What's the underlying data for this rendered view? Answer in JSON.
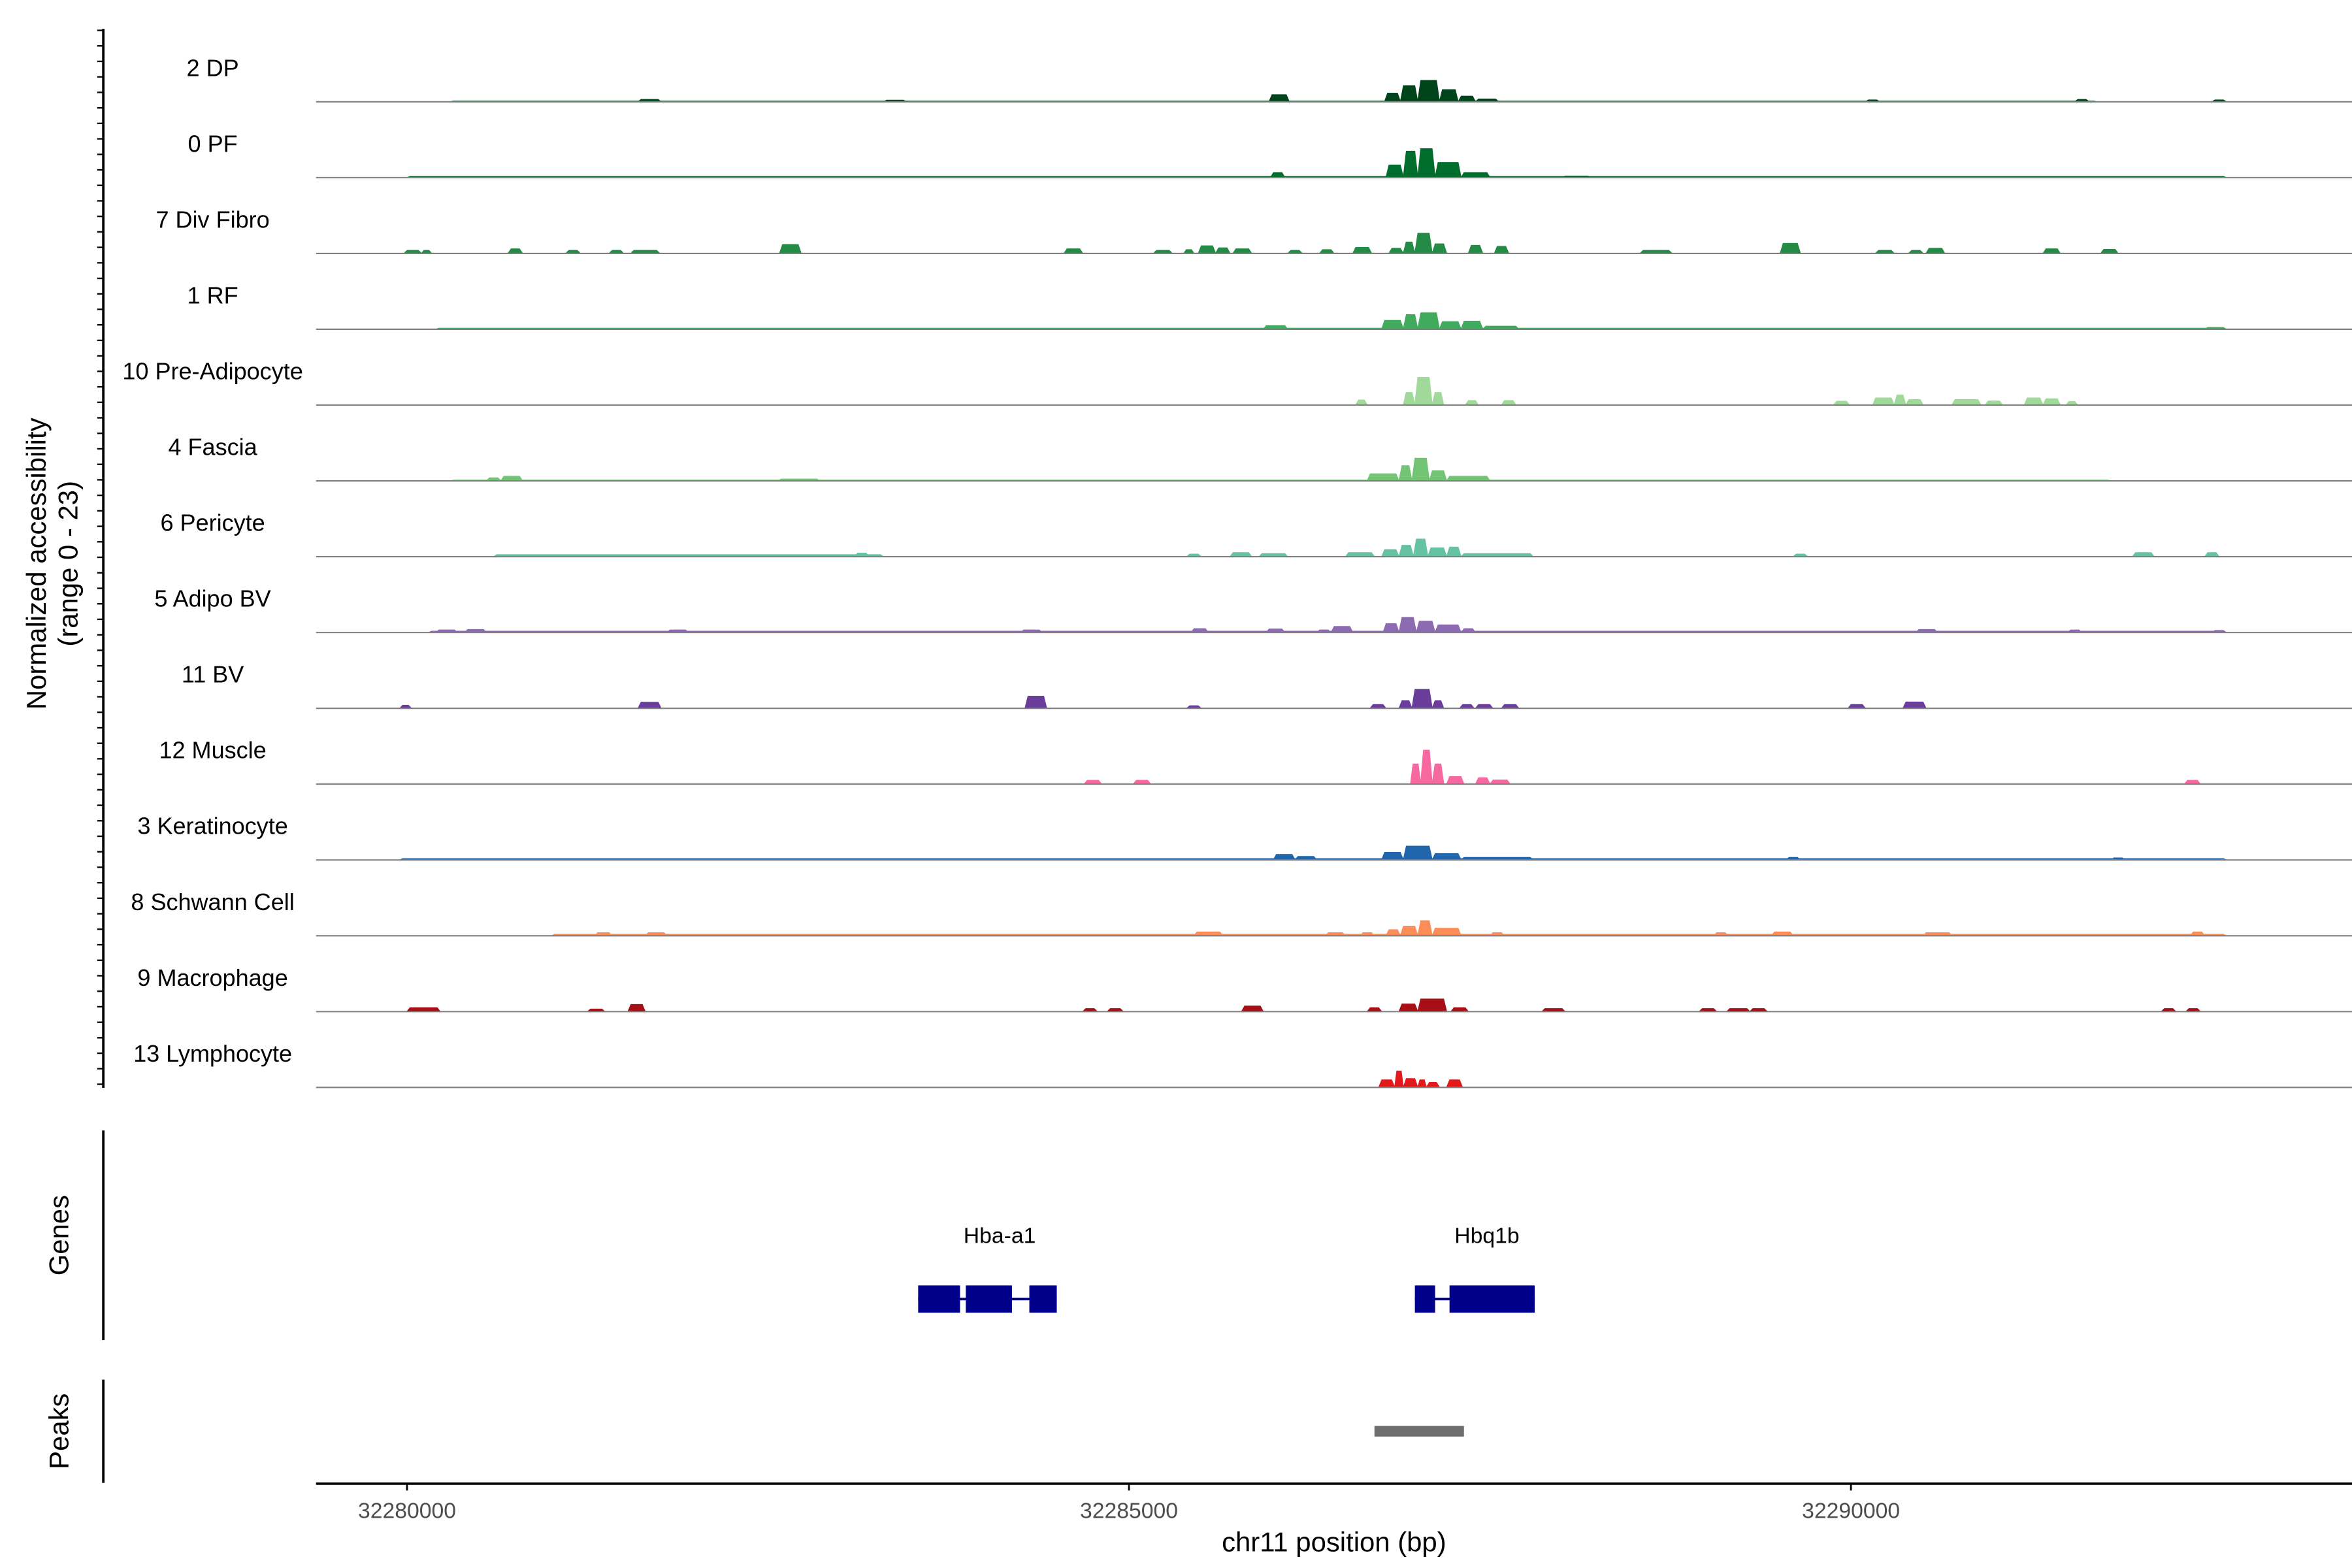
{
  "chart_data": {
    "type": "area",
    "subtype": "genome-browser-coverage",
    "ylabel_line1": "Normalized accessibility",
    "ylabel_line2": "(range 0 - 23)",
    "ylim": [
      0,
      23
    ],
    "xlabel": "chr11 position (bp)",
    "xlim": [
      32279370,
      32293470
    ],
    "x_ticks": [
      32280000,
      32285000,
      32290000
    ],
    "x_tick_labels": [
      "32280000",
      "32285000",
      "32290000"
    ],
    "genes_label": "Genes",
    "peaks_label": "Peaks",
    "tracks": [
      {
        "name": "2 DP",
        "color": "#00441b",
        "peaks": [
          [
            32280300,
            32291700,
            0.3
          ],
          [
            32285000,
            32291700,
            0.3
          ],
          [
            32285970,
            32286110,
            2.8
          ],
          [
            32286770,
            32286880,
            3.4
          ],
          [
            32286880,
            32287000,
            6.4
          ],
          [
            32287000,
            32287150,
            8.5
          ],
          [
            32287150,
            32287280,
            4.8
          ],
          [
            32287280,
            32287400,
            2.2
          ],
          [
            32287400,
            32287560,
            1.1
          ],
          [
            32281600,
            32281760,
            0.9
          ],
          [
            32283300,
            32283460,
            0.6
          ],
          [
            32290100,
            32290200,
            0.7
          ],
          [
            32291550,
            32291650,
            0.9
          ],
          [
            32292500,
            32292600,
            0.7
          ]
        ]
      },
      {
        "name": "0 PF",
        "color": "#006d2c",
        "peaks": [
          [
            32280000,
            32292600,
            0.45
          ],
          [
            32285980,
            32286080,
            2.0
          ],
          [
            32286780,
            32286900,
            5.0
          ],
          [
            32286900,
            32287000,
            10.5
          ],
          [
            32287000,
            32287120,
            11.5
          ],
          [
            32287120,
            32287300,
            6.0
          ],
          [
            32287300,
            32287500,
            2.0
          ],
          [
            32288000,
            32288200,
            0.6
          ]
        ]
      },
      {
        "name": "7 Div Fibro",
        "color": "#238b45",
        "peaks": [
          [
            32279980,
            32280100,
            1.2
          ],
          [
            32280100,
            32280170,
            1.2
          ],
          [
            32280700,
            32280800,
            1.8
          ],
          [
            32281100,
            32281200,
            1.2
          ],
          [
            32281400,
            32281500,
            1.2
          ],
          [
            32281550,
            32281750,
            1.2
          ],
          [
            32282580,
            32282730,
            3.5
          ],
          [
            32284550,
            32284680,
            1.8
          ],
          [
            32285170,
            32285300,
            1.2
          ],
          [
            32285380,
            32285450,
            1.5
          ],
          [
            32285480,
            32285600,
            3.0
          ],
          [
            32285600,
            32285700,
            2.2
          ],
          [
            32285720,
            32285850,
            1.8
          ],
          [
            32286100,
            32286200,
            1.2
          ],
          [
            32286320,
            32286420,
            1.5
          ],
          [
            32286550,
            32286680,
            2.4
          ],
          [
            32286800,
            32286900,
            2.0
          ],
          [
            32286900,
            32286980,
            4.5
          ],
          [
            32286980,
            32287100,
            8.0
          ],
          [
            32287100,
            32287200,
            3.8
          ],
          [
            32287350,
            32287450,
            3.2
          ],
          [
            32287530,
            32287630,
            2.8
          ],
          [
            32288540,
            32288760,
            1.2
          ],
          [
            32289510,
            32289650,
            4.0
          ],
          [
            32290170,
            32290300,
            1.2
          ],
          [
            32290400,
            32290500,
            1.2
          ],
          [
            32290520,
            32290650,
            2.0
          ],
          [
            32291330,
            32291450,
            1.8
          ],
          [
            32291730,
            32291850,
            1.6
          ]
        ]
      },
      {
        "name": "1 RF",
        "color": "#41ab5d",
        "peaks": [
          [
            32280200,
            32292600,
            0.4
          ],
          [
            32285930,
            32286100,
            1.4
          ],
          [
            32286750,
            32286900,
            3.5
          ],
          [
            32286900,
            32287000,
            5.8
          ],
          [
            32287000,
            32287150,
            6.5
          ],
          [
            32287150,
            32287300,
            3.0
          ],
          [
            32287300,
            32287450,
            3.2
          ],
          [
            32287450,
            32287700,
            1.2
          ],
          [
            32292450,
            32292600,
            0.7
          ]
        ]
      },
      {
        "name": "10 Pre-Adipocyte",
        "color": "#a1d99b",
        "peaks": [
          [
            32286570,
            32286650,
            2.0
          ],
          [
            32286900,
            32286980,
            5.0
          ],
          [
            32286980,
            32287100,
            11.0
          ],
          [
            32287100,
            32287180,
            5.0
          ],
          [
            32287330,
            32287420,
            1.8
          ],
          [
            32287580,
            32287680,
            1.8
          ],
          [
            32289880,
            32289990,
            1.5
          ],
          [
            32290150,
            32290300,
            2.8
          ],
          [
            32290300,
            32290380,
            4.0
          ],
          [
            32290380,
            32290500,
            2.2
          ],
          [
            32290700,
            32290900,
            2.2
          ],
          [
            32290930,
            32291050,
            1.6
          ],
          [
            32291200,
            32291330,
            2.8
          ],
          [
            32291330,
            32291450,
            2.5
          ],
          [
            32291490,
            32291570,
            1.4
          ]
        ]
      },
      {
        "name": "4 Fascia",
        "color": "#74c476",
        "peaks": [
          [
            32280300,
            32291800,
            0.3
          ],
          [
            32280550,
            32280650,
            1.2
          ],
          [
            32280650,
            32280800,
            1.8
          ],
          [
            32282570,
            32282860,
            0.7
          ],
          [
            32286650,
            32286870,
            2.8
          ],
          [
            32286870,
            32286960,
            6.0
          ],
          [
            32286960,
            32287080,
            9.0
          ],
          [
            32287080,
            32287200,
            4.0
          ],
          [
            32287200,
            32287500,
            1.8
          ]
        ]
      },
      {
        "name": "6 Pericyte",
        "color": "#66c2a4",
        "peaks": [
          [
            32280600,
            32283300,
            0.8
          ],
          [
            32283100,
            32283200,
            1.4
          ],
          [
            32285400,
            32285500,
            1.0
          ],
          [
            32285700,
            32285850,
            1.6
          ],
          [
            32285900,
            32286100,
            1.2
          ],
          [
            32286500,
            32286700,
            1.6
          ],
          [
            32286750,
            32286870,
            2.8
          ],
          [
            32286870,
            32286970,
            4.5
          ],
          [
            32286970,
            32287070,
            7.0
          ],
          [
            32287070,
            32287200,
            3.5
          ],
          [
            32287200,
            32287300,
            3.8
          ],
          [
            32287300,
            32287800,
            1.2
          ],
          [
            32289600,
            32289700,
            1.0
          ],
          [
            32291950,
            32292100,
            1.6
          ],
          [
            32292450,
            32292550,
            1.6
          ]
        ]
      },
      {
        "name": "5 Adipo BV",
        "color": "#8c6bb1",
        "peaks": [
          [
            32280150,
            32292600,
            0.5
          ],
          [
            32280200,
            32280350,
            1.0
          ],
          [
            32280400,
            32280550,
            1.2
          ],
          [
            32281800,
            32281950,
            1.0
          ],
          [
            32284250,
            32284400,
            1.0
          ],
          [
            32285430,
            32285550,
            1.5
          ],
          [
            32285950,
            32286080,
            1.4
          ],
          [
            32286300,
            32286400,
            1.0
          ],
          [
            32286400,
            32286550,
            2.4
          ],
          [
            32286760,
            32286870,
            3.5
          ],
          [
            32286870,
            32286990,
            6.0
          ],
          [
            32286990,
            32287120,
            4.5
          ],
          [
            32287120,
            32287300,
            3.0
          ],
          [
            32287300,
            32287400,
            1.5
          ],
          [
            32290450,
            32290600,
            1.2
          ],
          [
            32291500,
            32291600,
            1.0
          ],
          [
            32292500,
            32292600,
            0.8
          ]
        ]
      },
      {
        "name": "11 BV",
        "color": "#6a3d9a",
        "peaks": [
          [
            32279950,
            32280030,
            1.2
          ],
          [
            32281600,
            32281760,
            2.4
          ],
          [
            32284280,
            32284430,
            4.8
          ],
          [
            32285400,
            32285500,
            1.0
          ],
          [
            32286670,
            32286780,
            1.5
          ],
          [
            32286870,
            32286960,
            3.0
          ],
          [
            32286960,
            32287100,
            7.5
          ],
          [
            32287100,
            32287180,
            3.0
          ],
          [
            32287290,
            32287390,
            1.5
          ],
          [
            32287400,
            32287520,
            1.5
          ],
          [
            32287580,
            32287700,
            1.5
          ],
          [
            32289980,
            32290100,
            1.5
          ],
          [
            32290360,
            32290520,
            2.5
          ]
        ]
      },
      {
        "name": "12 Muscle",
        "color": "#f768a1",
        "peaks": [
          [
            32284690,
            32284810,
            1.5
          ],
          [
            32285030,
            32285150,
            1.5
          ],
          [
            32286950,
            32287020,
            8.0
          ],
          [
            32287020,
            32287100,
            13.5
          ],
          [
            32287100,
            32287180,
            8.0
          ],
          [
            32287200,
            32287320,
            3.0
          ],
          [
            32287400,
            32287500,
            2.5
          ],
          [
            32287500,
            32287640,
            1.6
          ],
          [
            32292310,
            32292420,
            1.5
          ]
        ]
      },
      {
        "name": "3 Keratinocyte",
        "color": "#2166ac",
        "peaks": [
          [
            32279950,
            32292600,
            0.5
          ],
          [
            32286000,
            32286150,
            2.2
          ],
          [
            32286150,
            32286300,
            1.4
          ],
          [
            32286750,
            32286900,
            3.0
          ],
          [
            32286900,
            32287100,
            5.5
          ],
          [
            32287100,
            32287300,
            2.5
          ],
          [
            32287300,
            32287800,
            1.0
          ],
          [
            32289550,
            32289650,
            1.0
          ],
          [
            32291800,
            32291900,
            0.8
          ]
        ]
      },
      {
        "name": "8 Schwann Cell",
        "color": "#fc8d59",
        "peaks": [
          [
            32281000,
            32292600,
            0.6
          ],
          [
            32281300,
            32281420,
            1.2
          ],
          [
            32281650,
            32281800,
            1.2
          ],
          [
            32285450,
            32285650,
            1.5
          ],
          [
            32286360,
            32286500,
            1.2
          ],
          [
            32286600,
            32286700,
            1.2
          ],
          [
            32286780,
            32286880,
            2.4
          ],
          [
            32286880,
            32287000,
            3.8
          ],
          [
            32287000,
            32287100,
            6.0
          ],
          [
            32287100,
            32287300,
            3.0
          ],
          [
            32287500,
            32287600,
            1.2
          ],
          [
            32289050,
            32289150,
            1.2
          ],
          [
            32289450,
            32289600,
            1.5
          ],
          [
            32290500,
            32290700,
            1.2
          ],
          [
            32292350,
            32292450,
            1.5
          ]
        ]
      },
      {
        "name": "9 Macrophage",
        "color": "#a50f15",
        "peaks": [
          [
            32280000,
            32280230,
            1.5
          ],
          [
            32281250,
            32281370,
            1.0
          ],
          [
            32281530,
            32281650,
            2.8
          ],
          [
            32284680,
            32284780,
            1.2
          ],
          [
            32284850,
            32284960,
            1.2
          ],
          [
            32285780,
            32285930,
            2.2
          ],
          [
            32286650,
            32286750,
            1.5
          ],
          [
            32286870,
            32287000,
            3.0
          ],
          [
            32287000,
            32287200,
            5.0
          ],
          [
            32287230,
            32287350,
            1.5
          ],
          [
            32287860,
            32288020,
            1.2
          ],
          [
            32288950,
            32289070,
            1.2
          ],
          [
            32289140,
            32289300,
            1.2
          ],
          [
            32289300,
            32289420,
            1.2
          ],
          [
            32292150,
            32292250,
            1.2
          ],
          [
            32292320,
            32292420,
            1.2
          ]
        ]
      },
      {
        "name": "13 Lymphocyte",
        "color": "#e31a1c",
        "peaks": [
          [
            32286730,
            32286840,
            3.0
          ],
          [
            32286840,
            32286900,
            6.5
          ],
          [
            32286900,
            32287000,
            3.5
          ],
          [
            32287000,
            32287060,
            3.0
          ],
          [
            32287060,
            32287150,
            2.0
          ],
          [
            32287200,
            32287310,
            3.0
          ]
        ]
      }
    ],
    "genes": [
      {
        "name": "Hba-a1",
        "start": 32283540,
        "end": 32284500,
        "exons": [
          [
            32283540,
            32283830
          ],
          [
            32283870,
            32284190
          ],
          [
            32284310,
            32284500
          ]
        ]
      },
      {
        "name": "Hbq1b",
        "start": 32286980,
        "end": 32287810,
        "exons": [
          [
            32286980,
            32287120
          ],
          [
            32287220,
            32287810
          ]
        ]
      }
    ],
    "peak_regions": [
      [
        32286700,
        32287320
      ]
    ]
  }
}
